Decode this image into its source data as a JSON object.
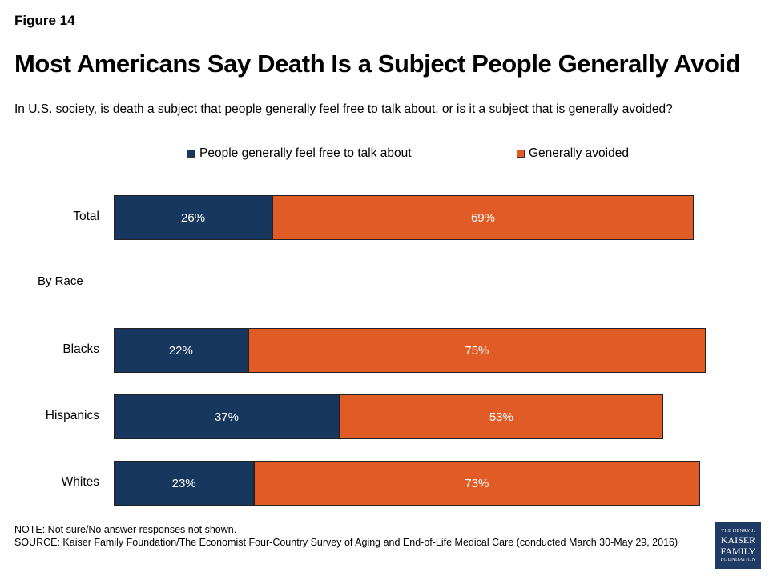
{
  "figure_label": "Figure 14",
  "colors": {
    "free": "#17375e",
    "avoided": "#e05b25"
  },
  "chart_data": {
    "type": "bar",
    "orientation": "horizontal",
    "stacked": true,
    "title": "Most Americans Say Death Is a Subject People Generally Avoid",
    "subtitle": "In U.S. society, is death a subject that people generally feel free to talk about, or is it a subject that is generally avoided?",
    "legend": {
      "placement": "top-center",
      "items": [
        "People generally feel free to talk about",
        "Generally avoided"
      ]
    },
    "group_header": "By Race",
    "categories": [
      "Total",
      "Blacks",
      "Hispanics",
      "Whites"
    ],
    "series": [
      {
        "name": "People generally feel free to talk about",
        "values": [
          26,
          22,
          37,
          23
        ],
        "labels": [
          "26%",
          "22%",
          "37%",
          "23%"
        ]
      },
      {
        "name": "Generally avoided",
        "values": [
          69,
          75,
          53,
          73
        ],
        "labels": [
          "69%",
          "75%",
          "53%",
          "73%"
        ]
      }
    ],
    "xlim": [
      0,
      100
    ],
    "grid": false
  },
  "footer": {
    "note": "NOTE: Not sure/No answer responses not shown.",
    "source": "SOURCE: Kaiser Family Foundation/The Economist Four-Country Survey of Aging and End-of-Life Medical Care (conducted March 30-May 29, 2016)"
  },
  "logo": {
    "line1": "THE HENRY J.",
    "line2": "KAISER",
    "line3": "FAMILY",
    "line4": "FOUNDATION"
  }
}
